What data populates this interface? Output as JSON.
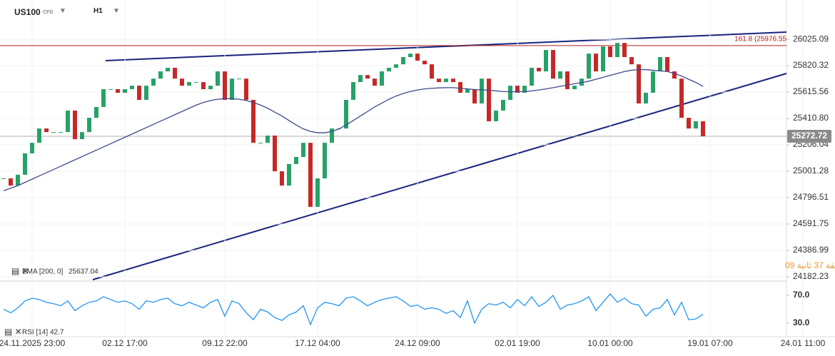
{
  "chart_data": [
    {
      "type": "candlestick",
      "timeframe": "H1",
      "instrument_type": "CFD",
      "categories": [
        null,
        null,
        null,
        null,
        "24.11.2025 23:00",
        null,
        null,
        null,
        null,
        null,
        null,
        null,
        null,
        null,
        null,
        null,
        null,
        "02.12 17:00",
        null,
        null,
        null,
        null,
        null,
        null,
        null,
        null,
        null,
        null,
        null,
        null,
        null,
        "09.12 22:00",
        null,
        null,
        null,
        null,
        null,
        null,
        null,
        null,
        null,
        null,
        null,
        null,
        "17.12 04:00",
        null,
        null,
        null,
        null,
        null,
        null,
        null,
        null,
        null,
        null,
        null,
        null,
        null,
        "24.12 09:00",
        null,
        null,
        null,
        null,
        null,
        null,
        null,
        null,
        null,
        null,
        null,
        null,
        null,
        "02.01 19:00",
        null,
        null,
        null,
        null,
        null,
        null,
        null,
        null,
        null,
        null,
        null,
        null,
        "10.01 00:00",
        null,
        null,
        null,
        null,
        null,
        null,
        null,
        null,
        null,
        null,
        null,
        null,
        null,
        "19.01 07:00",
        null,
        null,
        null,
        null,
        null,
        null,
        null,
        null,
        null,
        null,
        null,
        null,
        "24.01 11:00"
      ],
      "series": [
        {
          "name": "US100",
          "up_color": "#26a269",
          "down_color": "#c62828",
          "values": [
            24946,
            24890,
            24974,
            25140,
            25222,
            25333,
            25305,
            25305,
            25305,
            25472,
            25250,
            25305,
            25416,
            25500,
            25638,
            25638,
            25610,
            25638,
            25665,
            25555,
            25665,
            25720,
            25776,
            25804,
            25720,
            25665,
            25693,
            25693,
            25638,
            25665,
            25776,
            25555,
            25720,
            25720,
            25555,
            25222,
            25222,
            25278,
            25001,
            24890,
            25057,
            25112,
            25222,
            24725,
            24946,
            25222,
            25333,
            25333,
            25555,
            25693,
            25748,
            25720,
            25665,
            25776,
            25804,
            25831,
            25887,
            25914,
            25859,
            25831,
            25720,
            25693,
            25720,
            25693,
            25610,
            25638,
            25527,
            25720,
            25389,
            25472,
            25555,
            25665,
            25610,
            25665,
            25804,
            25776,
            25942,
            25720,
            25776,
            25638,
            25665,
            25720,
            25914,
            25776,
            25970,
            25887,
            25997,
            25887,
            25831,
            25527,
            25610,
            25776,
            25887,
            25776,
            25720,
            25416,
            25333,
            25389,
            25273,
            null,
            null,
            null,
            null,
            null,
            null,
            null,
            null,
            null,
            null,
            null,
            null,
            null,
            null
          ]
        },
        {
          "name": "EMA [200, 0]",
          "color": "#3f4a8a",
          "last_value": 25637.04,
          "values": [
            24850,
            24870,
            24890,
            24915,
            24940,
            24965,
            24990,
            25015,
            25040,
            25065,
            25090,
            25115,
            25140,
            25165,
            25190,
            25215,
            25240,
            25265,
            25290,
            25315,
            25340,
            25365,
            25390,
            25415,
            25440,
            25465,
            25490,
            25515,
            25535,
            25550,
            25560,
            25565,
            25565,
            25560,
            25550,
            25535,
            25515,
            25490,
            25460,
            25430,
            25395,
            25360,
            25330,
            25310,
            25300,
            25300,
            25310,
            25330,
            25360,
            25395,
            25430,
            25465,
            25500,
            25530,
            25560,
            25585,
            25605,
            25620,
            25632,
            25640,
            25645,
            25648,
            25650,
            25650,
            25645,
            25640,
            25635,
            25632,
            25630,
            25625,
            25620,
            25618,
            25618,
            25620,
            25625,
            25632,
            25640,
            25650,
            25660,
            25670,
            25680,
            25690,
            25700,
            25715,
            25730,
            25745,
            25760,
            25775,
            25785,
            25790,
            25790,
            25785,
            25780,
            25775,
            25760,
            25740,
            25715,
            25690,
            25660,
            null,
            null,
            null,
            null,
            null,
            null,
            null,
            null,
            null,
            null,
            null,
            null,
            null,
            null
          ]
        }
      ],
      "ylim": [
        24160,
        26330
      ],
      "yticks": [
        26025.09,
        25820.32,
        25615.56,
        {
          "value": 25410.8,
          "label": "25410.80"
        },
        25206.04,
        25001.28,
        24796.51,
        24591.75,
        24386.99,
        24182.23
      ],
      "current_price": 25272.72,
      "fib_level": {
        "label": "161.8 (25976.55",
        "value": 25976.55
      },
      "countdown": "دقيقة 37 ثانية 09",
      "grid": true
    },
    {
      "type": "line",
      "series": [
        {
          "name": "RSI [14]",
          "color": "#2196f3",
          "last_value": 42.7,
          "values": [
            50,
            45,
            52,
            62,
            66,
            64,
            60,
            58,
            55,
            62,
            48,
            55,
            60,
            62,
            68,
            64,
            60,
            62,
            58,
            50,
            62,
            60,
            64,
            66,
            58,
            55,
            60,
            56,
            52,
            60,
            64,
            40,
            62,
            58,
            45,
            35,
            50,
            46,
            38,
            34,
            42,
            46,
            55,
            28,
            52,
            60,
            58,
            55,
            66,
            68,
            62,
            55,
            60,
            64,
            66,
            68,
            62,
            54,
            56,
            50,
            52,
            50,
            44,
            48,
            38,
            62,
            30,
            50,
            58,
            56,
            60,
            52,
            64,
            55,
            68,
            54,
            60,
            70,
            50,
            56,
            58,
            62,
            68,
            48,
            60,
            72,
            60,
            66,
            58,
            56,
            40,
            50,
            52,
            64,
            42,
            60,
            35,
            36,
            42.7,
            null,
            null,
            null,
            null,
            null,
            null,
            null,
            null,
            null,
            null,
            null,
            null,
            null,
            null
          ]
        }
      ],
      "ylim": [
        10.5,
        87.4
      ],
      "yticks": [
        {
          "value": 70,
          "label": "70.0"
        },
        {
          "value": 30,
          "label": "30.0"
        }
      ]
    }
  ]
}
